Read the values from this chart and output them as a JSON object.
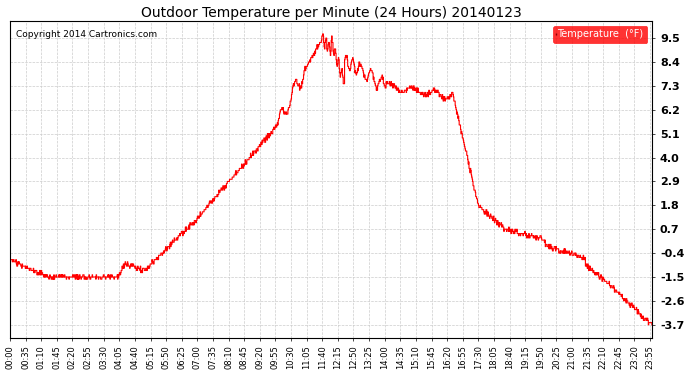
{
  "title": "Outdoor Temperature per Minute (24 Hours) 20140123",
  "copyright": "Copyright 2014 Cartronics.com",
  "legend_label": "Temperature  (°F)",
  "line_color": "red",
  "background_color": "white",
  "grid_color": "#cccccc",
  "yticks": [
    -3.7,
    -2.6,
    -1.5,
    -0.4,
    0.7,
    1.8,
    2.9,
    4.0,
    5.1,
    6.2,
    7.3,
    8.4,
    9.5
  ],
  "ylim": [
    -4.3,
    10.3
  ],
  "xlim": [
    0,
    1440
  ],
  "xtick_positions": [
    0,
    35,
    70,
    105,
    140,
    175,
    210,
    245,
    280,
    315,
    350,
    385,
    420,
    455,
    490,
    525,
    560,
    595,
    630,
    665,
    700,
    735,
    770,
    805,
    840,
    875,
    910,
    945,
    980,
    1015,
    1050,
    1085,
    1120,
    1155,
    1190,
    1225,
    1260,
    1295,
    1330,
    1365,
    1400,
    1435
  ],
  "xtick_labels": [
    "00:00",
    "00:35",
    "01:10",
    "01:45",
    "02:20",
    "02:55",
    "03:30",
    "04:05",
    "04:40",
    "05:15",
    "05:50",
    "06:25",
    "07:00",
    "07:35",
    "08:10",
    "08:45",
    "09:20",
    "09:55",
    "10:30",
    "11:05",
    "11:40",
    "12:15",
    "12:50",
    "13:25",
    "14:00",
    "14:35",
    "15:10",
    "15:45",
    "16:20",
    "16:55",
    "17:30",
    "18:05",
    "18:40",
    "19:15",
    "19:50",
    "20:25",
    "21:00",
    "21:35",
    "22:10",
    "22:45",
    "23:20",
    "23:55"
  ],
  "title_fontsize": 10,
  "tick_fontsize": 6,
  "y_fontsize": 8
}
